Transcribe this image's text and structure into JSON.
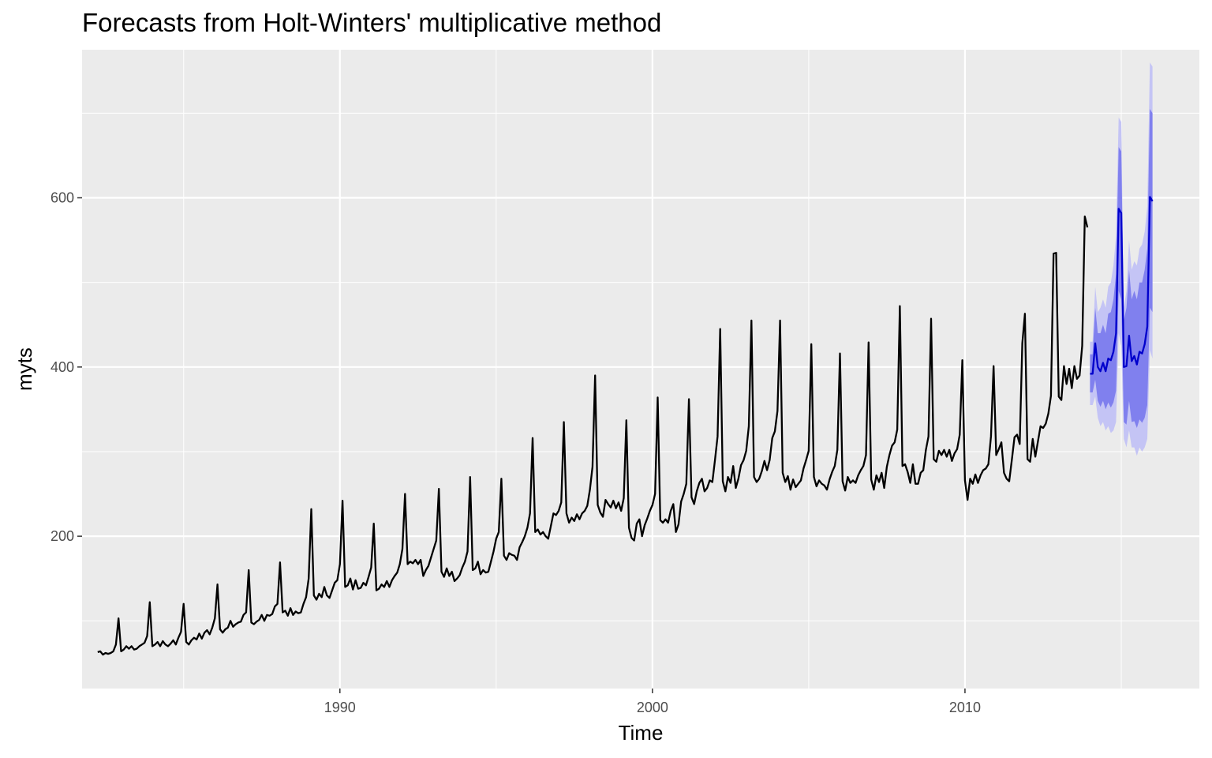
{
  "chart_data": {
    "type": "line",
    "title": "Forecasts from Holt-Winters' multiplicative method",
    "xlabel": "Time",
    "ylabel": "myts",
    "x_ticks": [
      1990,
      2000,
      2010
    ],
    "y_ticks": [
      200,
      400,
      600
    ],
    "xlim": [
      1981.75,
      2017.5
    ],
    "ylim": [
      20,
      775
    ],
    "grid": true,
    "legend": "none",
    "colors": {
      "panel_background": "#ebebeb",
      "grid": "#ffffff",
      "history_line": "#000000",
      "forecast_line": "#0000cc",
      "interval_80": "#8080ee",
      "interval_95": "#c4c4f5"
    },
    "series": [
      {
        "role": "history",
        "start": 1982.25,
        "frequency": 12,
        "values": [
          63,
          64,
          60,
          62,
          61,
          62,
          64,
          72,
          103,
          64,
          66,
          70,
          67,
          70,
          66,
          67,
          70,
          72,
          74,
          82,
          122,
          70,
          72,
          75,
          70,
          76,
          72,
          70,
          73,
          77,
          72,
          80,
          87,
          120,
          75,
          72,
          77,
          80,
          78,
          85,
          79,
          86,
          89,
          84,
          92,
          103,
          143,
          90,
          86,
          90,
          92,
          100,
          93,
          96,
          98,
          99,
          107,
          110,
          160,
          98,
          96,
          99,
          101,
          107,
          100,
          107,
          106,
          108,
          117,
          120,
          169,
          110,
          112,
          106,
          115,
          107,
          111,
          109,
          110,
          120,
          128,
          150,
          232,
          130,
          125,
          132,
          128,
          140,
          130,
          127,
          136,
          145,
          148,
          167,
          242,
          140,
          142,
          150,
          137,
          148,
          138,
          139,
          145,
          142,
          152,
          163,
          215,
          136,
          138,
          143,
          140,
          147,
          140,
          148,
          153,
          157,
          167,
          185,
          250,
          167,
          170,
          168,
          172,
          167,
          172,
          153,
          160,
          165,
          175,
          185,
          195,
          256,
          158,
          152,
          162,
          153,
          158,
          147,
          150,
          154,
          163,
          170,
          182,
          270,
          160,
          162,
          170,
          155,
          160,
          157,
          158,
          170,
          182,
          197,
          205,
          268,
          177,
          172,
          180,
          178,
          177,
          172,
          187,
          193,
          200,
          210,
          227,
          316,
          205,
          208,
          202,
          205,
          200,
          197,
          212,
          227,
          225,
          230,
          240,
          335,
          227,
          216,
          222,
          218,
          226,
          220,
          227,
          230,
          236,
          255,
          282,
          390,
          237,
          228,
          223,
          243,
          238,
          234,
          242,
          233,
          240,
          230,
          245,
          337,
          210,
          198,
          195,
          215,
          220,
          200,
          213,
          221,
          230,
          237,
          250,
          364,
          219,
          216,
          220,
          216,
          230,
          238,
          205,
          214,
          241,
          250,
          262,
          362,
          246,
          238,
          253,
          263,
          268,
          253,
          257,
          266,
          264,
          290,
          318,
          445,
          265,
          253,
          270,
          263,
          283,
          257,
          268,
          284,
          290,
          301,
          330,
          455,
          270,
          264,
          268,
          277,
          289,
          278,
          290,
          316,
          324,
          348,
          455,
          275,
          264,
          271,
          255,
          267,
          258,
          262,
          266,
          280,
          290,
          301,
          427,
          270,
          259,
          266,
          262,
          260,
          255,
          267,
          276,
          283,
          302,
          416,
          265,
          254,
          270,
          263,
          266,
          263,
          272,
          278,
          283,
          296,
          429,
          267,
          255,
          272,
          264,
          275,
          257,
          282,
          296,
          307,
          311,
          326,
          472,
          283,
          285,
          276,
          263,
          285,
          262,
          262,
          275,
          278,
          302,
          318,
          457,
          291,
          288,
          301,
          296,
          302,
          294,
          302,
          289,
          298,
          303,
          320,
          408,
          266,
          243,
          268,
          262,
          273,
          263,
          272,
          278,
          280,
          285,
          318,
          401,
          296,
          303,
          311,
          275,
          268,
          265,
          290,
          317,
          320,
          309,
          428,
          463,
          291,
          288,
          315,
          294,
          312,
          330,
          328,
          333,
          345,
          366,
          534,
          535,
          365,
          361,
          401,
          380,
          398,
          375,
          401,
          386,
          390,
          425,
          578,
          565
        ]
      },
      {
        "role": "forecast",
        "start": 2014.0,
        "frequency": 12,
        "values": [
          392,
          392,
          428,
          400,
          395,
          405,
          395,
          410,
          408,
          418,
          440,
          587,
          582,
          400,
          401,
          437,
          407,
          413,
          403,
          418,
          416,
          427,
          448,
          601,
          596
        ],
        "lo80": [
          370,
          370,
          385,
          360,
          353,
          360,
          350,
          358,
          352,
          358,
          372,
          490,
          480,
          335,
          332,
          360,
          335,
          336,
          328,
          338,
          334,
          340,
          355,
          470,
          465
        ],
        "hi80": [
          415,
          415,
          470,
          440,
          440,
          450,
          440,
          463,
          465,
          480,
          510,
          660,
          655,
          455,
          470,
          515,
          480,
          490,
          480,
          500,
          500,
          515,
          540,
          705,
          700
        ],
        "lo95": [
          355,
          355,
          365,
          340,
          330,
          335,
          325,
          330,
          322,
          325,
          335,
          440,
          425,
          315,
          305,
          325,
          305,
          305,
          295,
          305,
          300,
          305,
          315,
          420,
          410
        ],
        "hi95": [
          430,
          430,
          495,
          465,
          470,
          480,
          470,
          495,
          500,
          520,
          555,
          695,
          690,
          470,
          490,
          550,
          515,
          525,
          520,
          540,
          545,
          560,
          590,
          760,
          755
        ]
      }
    ]
  }
}
